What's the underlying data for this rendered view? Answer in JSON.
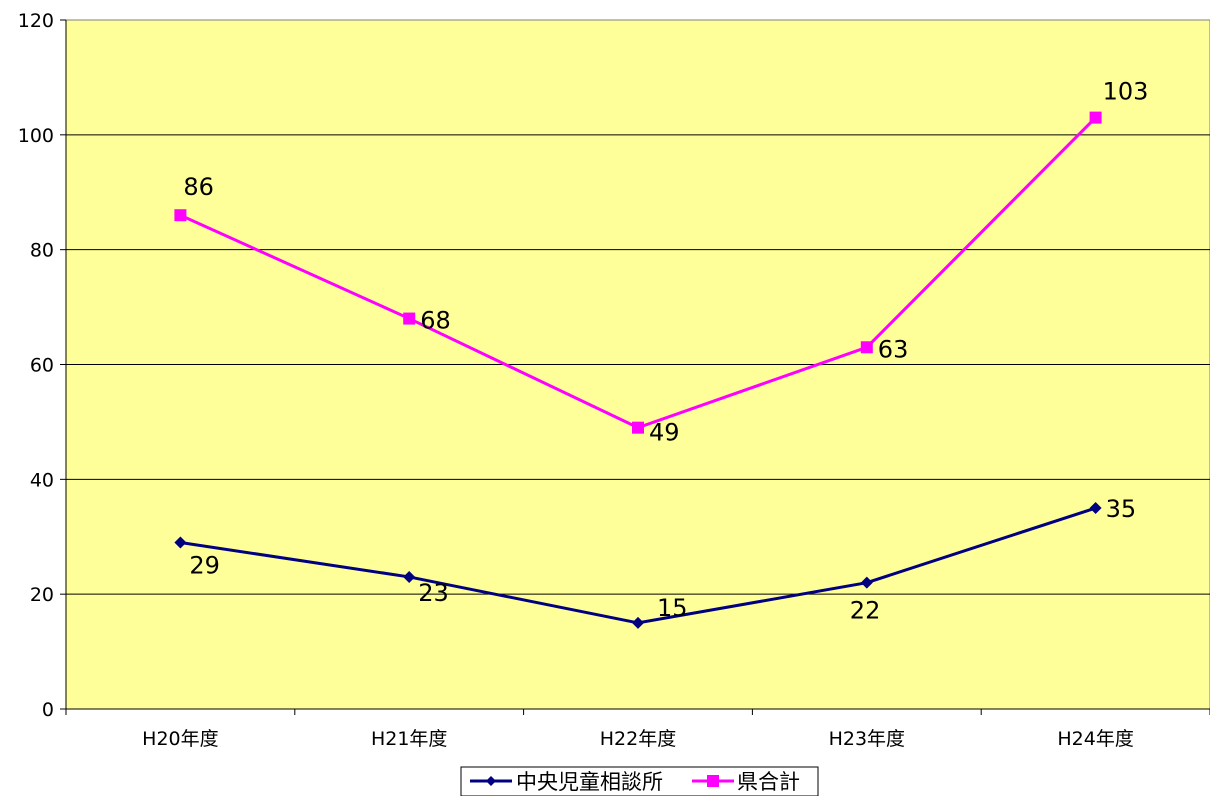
{
  "chart_data": {
    "type": "line",
    "categories": [
      "H20年度",
      "H21年度",
      "H22年度",
      "H23年度",
      "H24年度"
    ],
    "series": [
      {
        "name": "中央児童相談所",
        "values": [
          29,
          23,
          15,
          22,
          35
        ],
        "color": "#000080",
        "marker": "diamond"
      },
      {
        "name": "県合計",
        "values": [
          86,
          68,
          49,
          63,
          103
        ],
        "color": "#ff00ff",
        "marker": "square"
      }
    ],
    "ylim": [
      0,
      120
    ],
    "yticks": [
      0,
      20,
      40,
      60,
      80,
      100,
      120
    ],
    "grid": true,
    "legend": "bottom",
    "plot_background": "#ffff99"
  }
}
